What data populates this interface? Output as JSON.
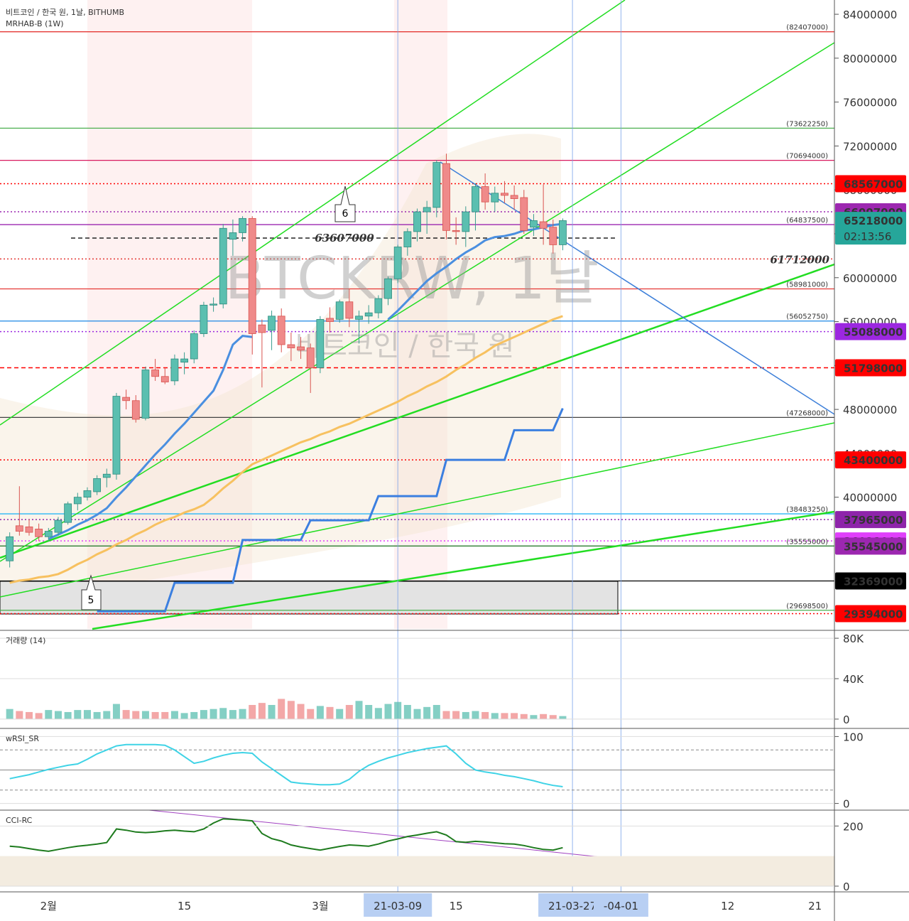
{
  "chart_data": {
    "type": "candlestick",
    "title": "비트코인 / 한국 원, 1날, BITHUMB",
    "subtitle": "MRHAB-B (1W)",
    "watermark_symbol": "BTCKRW, 1날",
    "watermark_name": "비트코인 / 한국 원",
    "callouts": [
      "6",
      "5"
    ],
    "x": [
      "21-01-28",
      "21-01-29",
      "21-01-30",
      "21-01-31",
      "21-02-01",
      "21-02-02",
      "21-02-03",
      "21-02-04",
      "21-02-05",
      "21-02-06",
      "21-02-07",
      "21-02-08",
      "21-02-09",
      "21-02-10",
      "21-02-11",
      "21-02-12",
      "21-02-13",
      "21-02-14",
      "21-02-15",
      "21-02-16",
      "21-02-17",
      "21-02-18",
      "21-02-19",
      "21-02-20",
      "21-02-21",
      "21-02-22",
      "21-02-23",
      "21-02-24",
      "21-02-25",
      "21-02-26",
      "21-02-27",
      "21-02-28",
      "21-03-01",
      "21-03-02",
      "21-03-03",
      "21-03-04",
      "21-03-05",
      "21-03-06",
      "21-03-07",
      "21-03-08",
      "21-03-09",
      "21-03-10",
      "21-03-11",
      "21-03-12",
      "21-03-13",
      "21-03-14",
      "21-03-15",
      "21-03-16",
      "21-03-17",
      "21-03-18",
      "21-03-19",
      "21-03-20",
      "21-03-21",
      "21-03-22",
      "21-03-23",
      "21-03-24",
      "21-03-25",
      "21-03-26"
    ],
    "open": [
      34200000,
      37400000,
      37300000,
      37100000,
      36400000,
      36800000,
      37700000,
      39400000,
      40000000,
      40500000,
      41800000,
      42100000,
      49100000,
      48800000,
      47200000,
      51600000,
      51000000,
      50600000,
      52300000,
      52600000,
      54900000,
      57500000,
      57600000,
      63500000,
      64100000,
      65400000,
      55700000,
      55200000,
      56500000,
      53900000,
      53700000,
      53600000,
      51800000,
      56300000,
      56200000,
      57800000,
      56200000,
      56500000,
      56800000,
      58100000,
      59900000,
      62800000,
      64200000,
      66000000,
      66400000,
      70400000,
      64300000,
      64200000,
      66000000,
      68300000,
      66900000,
      67700000,
      67500000,
      67300000,
      64600000,
      65100000,
      64600000,
      63000000
    ],
    "high": [
      36800000,
      41000000,
      38000000,
      37600000,
      37200000,
      38200000,
      39600000,
      40400000,
      40900000,
      42000000,
      42600000,
      49500000,
      49800000,
      49300000,
      51900000,
      52600000,
      51800000,
      53000000,
      53200000,
      55200000,
      57800000,
      58200000,
      64900000,
      65300000,
      65600000,
      65600000,
      56200000,
      57000000,
      57200000,
      55000000,
      54600000,
      54000000,
      56500000,
      57300000,
      58000000,
      59000000,
      57000000,
      57500000,
      58400000,
      60100000,
      63000000,
      64500000,
      66300000,
      67000000,
      70700000,
      71300000,
      65500000,
      66500000,
      68600000,
      69500000,
      68300000,
      68800000,
      68400000,
      68000000,
      65800000,
      68500000,
      65300000,
      65400000
    ],
    "low": [
      33600000,
      36500000,
      36500000,
      36000000,
      36000000,
      36500000,
      37500000,
      38800000,
      39700000,
      40200000,
      40900000,
      41600000,
      48000000,
      46800000,
      47000000,
      50600000,
      50300000,
      50200000,
      51200000,
      52200000,
      54600000,
      56900000,
      57200000,
      62000000,
      63300000,
      53000000,
      50000000,
      53400000,
      53200000,
      52400000,
      52600000,
      49500000,
      51300000,
      55000000,
      55900000,
      55500000,
      54000000,
      55800000,
      56300000,
      57500000,
      59500000,
      62000000,
      63300000,
      64000000,
      65500000,
      63500000,
      63000000,
      62800000,
      64300000,
      66200000,
      66000000,
      66800000,
      66200000,
      64000000,
      63800000,
      63000000,
      62200000,
      62500000
    ],
    "close": [
      36400000,
      36900000,
      36800000,
      36400000,
      36900000,
      37900000,
      39400000,
      40000000,
      40600000,
      41700000,
      42100000,
      49200000,
      48800000,
      47100000,
      51600000,
      51000000,
      50500000,
      52600000,
      52600000,
      54900000,
      57500000,
      57600000,
      64500000,
      64100000,
      65400000,
      54900000,
      55000000,
      56500000,
      53900000,
      53600000,
      53400000,
      51800000,
      56200000,
      56000000,
      57800000,
      56300000,
      56500000,
      56800000,
      58100000,
      59900000,
      62800000,
      64200000,
      66000000,
      66400000,
      70500000,
      64300000,
      64200000,
      66000000,
      68300000,
      66900000,
      67700000,
      67500000,
      67200000,
      64300000,
      65200000,
      64500000,
      63000000,
      65200000
    ],
    "up_color": "#5bbfb0",
    "down_color": "#ef8a8a",
    "series": [
      {
        "color": "#f7c160",
        "values": [
          32200000,
          32400000,
          32500000,
          32700000,
          32800000,
          33000000,
          33400000,
          33900000,
          34300000,
          34800000,
          35200000,
          35700000,
          36100000,
          36600000,
          37000000,
          37500000,
          37900000,
          38200000,
          38600000,
          38900000,
          39300000,
          40000000,
          40800000,
          41500000,
          42300000,
          43000000,
          43400000,
          43800000,
          44200000,
          44600000,
          45000000,
          45300000,
          45700000,
          46000000,
          46400000,
          46700000,
          47100000,
          47500000,
          47900000,
          48300000,
          48700000,
          49200000,
          49600000,
          50100000,
          50500000,
          51000000,
          51600000,
          52100000,
          52700000,
          53200000,
          53800000,
          54200000,
          54600000,
          55000000,
          55400000,
          55800000,
          56200000,
          56500000
        ]
      },
      {
        "color": "#4a8fe0",
        "values": [
          null,
          null,
          null,
          null,
          36200000,
          36600000,
          37000000,
          37500000,
          37900000,
          38400000,
          39000000,
          40000000,
          40900000,
          41900000,
          42900000,
          43900000,
          44800000,
          45800000,
          46700000,
          47700000,
          48700000,
          49700000,
          51600000,
          53900000,
          54700000,
          54600000,
          null,
          null,
          null,
          null,
          null,
          null,
          null,
          null,
          null,
          null,
          null,
          null,
          null,
          56200000,
          57000000,
          57900000,
          58800000,
          59700000,
          60400000,
          61000000,
          61700000,
          62300000,
          62800000,
          63400000,
          63700000,
          63800000,
          64000000,
          64300000,
          64400000,
          64600000,
          64800000,
          64900000
        ]
      },
      {
        "color": "#3b7fe0",
        "values": [
          null,
          null,
          null,
          null,
          null,
          null,
          null,
          null,
          null,
          29600000,
          29600000,
          29600000,
          29600000,
          29600000,
          29600000,
          29600000,
          29600000,
          32200000,
          32200000,
          32200000,
          32200000,
          32200000,
          32200000,
          32200000,
          36100000,
          36100000,
          36100000,
          36100000,
          36100000,
          36100000,
          36100000,
          37900000,
          37900000,
          37900000,
          37900000,
          37900000,
          37900000,
          37900000,
          40100000,
          40100000,
          40100000,
          40100000,
          40100000,
          40100000,
          40100000,
          43400000,
          43400000,
          43400000,
          43400000,
          43400000,
          43400000,
          43400000,
          46100000,
          46100000,
          46100000,
          46100000,
          46100000,
          48100000
        ]
      }
    ],
    "xlim": [
      "21-01-27",
      "21-04-23"
    ],
    "xticks": [
      {
        "value": "21-02-01",
        "label": "2월"
      },
      {
        "value": "21-02-15",
        "label": "15"
      },
      {
        "value": "21-03-01",
        "label": "3월"
      },
      {
        "value": "21-03-09",
        "label": "21-03-09",
        "marker": true
      },
      {
        "value": "21-03-15",
        "label": "15"
      },
      {
        "value": "21-03-27",
        "label": "21-03-27",
        "marker": true
      },
      {
        "value": "21-04-01",
        "label": "-04-01",
        "marker": true
      },
      {
        "value": "21-04-12",
        "label": "12"
      },
      {
        "value": "21-04-21",
        "label": "21"
      }
    ],
    "ylim": [
      28000000,
      85300000
    ],
    "yticks": [
      40000000,
      44000000,
      48000000,
      52000000,
      56000000,
      60000000,
      64000000,
      68000000,
      72000000,
      76000000,
      80000000,
      84000000
    ],
    "levels": [
      {
        "value": 82407000,
        "label": "(82407000)",
        "color": "#e53935",
        "style": "solid"
      },
      {
        "value": 73622250,
        "label": "(73622250)",
        "color": "#4caf50",
        "style": "solid"
      },
      {
        "value": 70694000,
        "label": "(70694000)",
        "color": "#d81b60",
        "style": "solid"
      },
      {
        "value": 68567000,
        "color": "#ff0000",
        "style": "dotted",
        "badge": true
      },
      {
        "value": 66007000,
        "color": "#9c27b0",
        "style": "dotted",
        "badge": true
      },
      {
        "value": 65218000,
        "color": "#26a69a",
        "style": "none",
        "badge": true,
        "countdown": "02:13:56"
      },
      {
        "value": 64837500,
        "label": "(64837500)",
        "color": "#9c27b0",
        "style": "solid"
      },
      {
        "value": 63607000,
        "color": "#222222",
        "style": "dashed",
        "caption": "left"
      },
      {
        "value": 61712000,
        "color": "#e53935",
        "style": "dotted",
        "caption": "right"
      },
      {
        "value": 58981000,
        "label": "(58981000)",
        "color": "#e53935",
        "style": "solid"
      },
      {
        "value": 56052750,
        "label": "(56052750)",
        "color": "#1e88e5",
        "style": "solid"
      },
      {
        "value": 55088000,
        "color": "#9c27e0",
        "style": "dotted",
        "badge": true
      },
      {
        "value": 51798000,
        "color": "#ff0000",
        "style": "dashed",
        "badge": true
      },
      {
        "value": 47268000,
        "label": "(47268000)",
        "color": "#424242",
        "style": "solid"
      },
      {
        "value": 43400000,
        "color": "#ff0000",
        "style": "dotted",
        "badge": true
      },
      {
        "value": 38483250,
        "label": "(38483250)",
        "color": "#29b6f6",
        "style": "solid"
      },
      {
        "value": 37965000,
        "color": "#8e24aa",
        "style": "dotted",
        "badge": true
      },
      {
        "value": 36021000,
        "color": "#e040fb",
        "style": "dotted",
        "badge": true
      },
      {
        "value": 35555000,
        "label": "(35555000)",
        "color": "#2e7d32",
        "style": "solid"
      },
      {
        "value": 35545000,
        "color": "#9c27b0",
        "style": "none",
        "badge": true
      },
      {
        "value": 32369000,
        "color": "#000000",
        "style": "solid",
        "badge": true
      },
      {
        "value": 29698500,
        "label": "(29698500)",
        "color": "#4caf50",
        "style": "solid"
      },
      {
        "value": 29394000,
        "color": "#ff0000",
        "style": "dotted",
        "badge": true
      }
    ],
    "panes": [
      {
        "type": "bar",
        "title": "거래량 (14)",
        "ylim": [
          -9200,
          86400
        ],
        "yticks": [
          0,
          {
            "value": 40000,
            "label": "40K"
          },
          {
            "value": 80000,
            "label": "80K"
          }
        ],
        "values": [
          10000,
          8000,
          7000,
          6000,
          9000,
          8000,
          7000,
          9000,
          9000,
          7000,
          8000,
          15000,
          9000,
          8000,
          8000,
          7000,
          7000,
          8000,
          6000,
          7000,
          9000,
          10000,
          11000,
          9000,
          10000,
          14000,
          16000,
          14000,
          20000,
          18000,
          15000,
          10000,
          13000,
          12000,
          10000,
          14000,
          18000,
          14000,
          11000,
          15000,
          17000,
          14000,
          10000,
          12000,
          14000,
          8000,
          8000,
          7000,
          8000,
          7000,
          6000,
          6000,
          6000,
          5000,
          4000,
          5000,
          4000,
          3000
        ]
      },
      {
        "type": "line",
        "title": "wRSI_SR",
        "ylim": [
          -10,
          110
        ],
        "yticks": [
          0,
          100
        ],
        "hlines": [
          80,
          50,
          20
        ],
        "color": "#3fd3e6",
        "values": [
          37,
          40,
          43,
          47,
          51,
          54,
          57,
          59,
          66,
          74,
          80,
          86,
          88,
          88,
          88,
          88,
          87,
          80,
          70,
          60,
          63,
          68,
          72,
          75,
          76,
          75,
          62,
          52,
          42,
          32,
          30,
          29,
          28,
          28,
          29,
          36,
          48,
          57,
          63,
          68,
          72,
          76,
          79,
          82,
          84,
          86,
          74,
          60,
          50,
          47,
          45,
          42,
          40,
          37,
          34,
          30,
          27,
          25
        ]
      },
      {
        "type": "line",
        "title": "CCI-RC",
        "ylim": [
          -19,
          248
        ],
        "yticks": [
          0,
          200
        ],
        "band": [
          0,
          100
        ],
        "color": "#1e7b1e",
        "values": [
          133,
          130,
          125,
          120,
          116,
          122,
          128,
          133,
          136,
          140,
          145,
          190,
          186,
          180,
          178,
          180,
          184,
          186,
          183,
          181,
          190,
          210,
          224,
          222,
          220,
          217,
          175,
          158,
          150,
          137,
          130,
          125,
          120,
          126,
          132,
          137,
          135,
          133,
          140,
          150,
          157,
          165,
          170,
          176,
          181,
          170,
          148,
          146,
          149,
          147,
          144,
          141,
          140,
          135,
          128,
          122,
          120,
          128
        ]
      }
    ]
  }
}
